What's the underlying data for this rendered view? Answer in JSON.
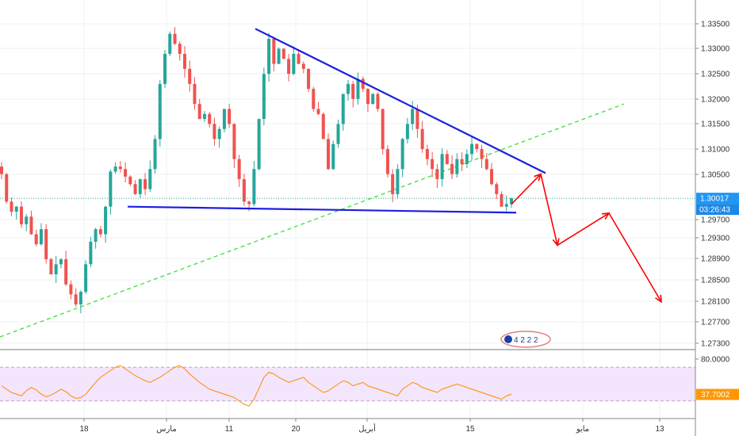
{
  "chart_data": [
    {
      "type": "candlestick",
      "title": "",
      "xlabel": "",
      "ylabel": "",
      "y_ticks": [
        "1.33500",
        "1.33000",
        "1.32500",
        "1.32000",
        "1.31500",
        "1.31000",
        "1.30500",
        "1.29700",
        "1.29300",
        "1.28900",
        "1.28500",
        "1.28100",
        "1.27700",
        "1.27300"
      ],
      "ylim": [
        1.2715,
        1.3385
      ],
      "x_ticks": [
        "18",
        "مارس",
        "11",
        "20",
        "أبريل",
        "15",
        "مايو",
        "13"
      ],
      "last_price_label": "1.30017",
      "countdown_label": "03:26:43",
      "last_price": 1.30017,
      "grid": true,
      "colors": {
        "up": "#26a69a",
        "down": "#ef5350",
        "triangle": "#1d1ee0",
        "projection": "#ff0000",
        "trendline": "#4be04b",
        "price_badge": "#2196f3",
        "countdown_badge": "#1e88e5",
        "rsi_badge": "#ff9800"
      },
      "candle_close_path": [
        [
          1.305,
          1.2995,
          1.2975,
          1.2985,
          1.295,
          1.2965,
          1.293,
          1.291,
          1.294,
          1.288,
          1.285,
          1.287,
          1.288,
          1.283,
          1.281,
          1.279,
          1.2815,
          1.287,
          1.2915,
          1.294,
          1.293,
          1.2985,
          1.3055,
          1.3065,
          1.306,
          1.3045,
          1.303,
          1.301,
          1.304,
          1.302,
          1.306,
          1.312,
          1.323,
          1.329,
          1.333,
          1.331,
          1.329,
          1.326,
          1.323,
          1.319,
          1.316,
          1.317,
          1.315,
          1.312,
          1.314,
          1.318,
          1.315,
          1.308,
          1.304,
          1.2995,
          1.299,
          1.306,
          1.316,
          1.325,
          1.332,
          1.327,
          1.33,
          1.328,
          1.325,
          1.329,
          1.327,
          1.326,
          1.322,
          1.318,
          1.317,
          1.312,
          1.306,
          1.311,
          1.315,
          1.321,
          1.323,
          1.32,
          1.324,
          1.322,
          1.319,
          1.321,
          1.318,
          1.31,
          1.305,
          1.301,
          1.306,
          1.312,
          1.315,
          1.318,
          1.314,
          1.31,
          1.308,
          1.306,
          1.304,
          1.309,
          1.307,
          1.305,
          1.308,
          1.307,
          1.309,
          1.311,
          1.31,
          1.308,
          1.306,
          1.303,
          1.301,
          1.2985,
          1.299,
          1.3002
        ]
      ],
      "overlays": {
        "triangle_upper": [
          [
            1.334,
            "start"
          ],
          [
            1.3052,
            "end"
          ]
        ],
        "triangle_lower": [
          [
            1.2985,
            "start"
          ],
          [
            1.2973,
            "end"
          ]
        ],
        "trendline": [
          [
            1.2725,
            "start"
          ],
          [
            1.319,
            "end"
          ]
        ],
        "projection_path": [
          1.299,
          1.305,
          1.2908,
          1.2972,
          1.2795
        ]
      }
    },
    {
      "type": "line",
      "title": "",
      "indicator": "RSI",
      "y_ticks": [
        "80.0000"
      ],
      "ylim": [
        10,
        90
      ],
      "upper_band": 70,
      "lower_band": 30,
      "last_value_label": "37.7002",
      "last_value": 37.7002,
      "colors": {
        "line": "#ff8c00",
        "band_fill": "#f3e5fb",
        "band_line": "#bfa3cc"
      },
      "series_values": [
        48,
        44,
        40,
        38,
        36,
        42,
        46,
        43,
        38,
        35,
        37,
        40,
        44,
        41,
        36,
        33,
        34,
        38,
        45,
        52,
        58,
        62,
        66,
        70,
        72,
        68,
        64,
        60,
        57,
        54,
        52,
        55,
        58,
        62,
        66,
        70,
        72,
        68,
        62,
        57,
        52,
        48,
        44,
        42,
        40,
        38,
        36,
        34,
        30,
        26,
        24,
        32,
        45,
        58,
        64,
        62,
        58,
        55,
        52,
        54,
        56,
        58,
        52,
        48,
        44,
        40,
        42,
        46,
        50,
        54,
        52,
        48,
        50,
        52,
        48,
        46,
        44,
        42,
        40,
        38,
        36,
        44,
        48,
        52,
        50,
        46,
        44,
        42,
        40,
        44,
        46,
        48,
        50,
        48,
        46,
        44,
        42,
        40,
        38,
        36,
        34,
        32,
        36,
        38
      ]
    }
  ],
  "branding": {
    "logo_text": "4 2 2 2"
  }
}
